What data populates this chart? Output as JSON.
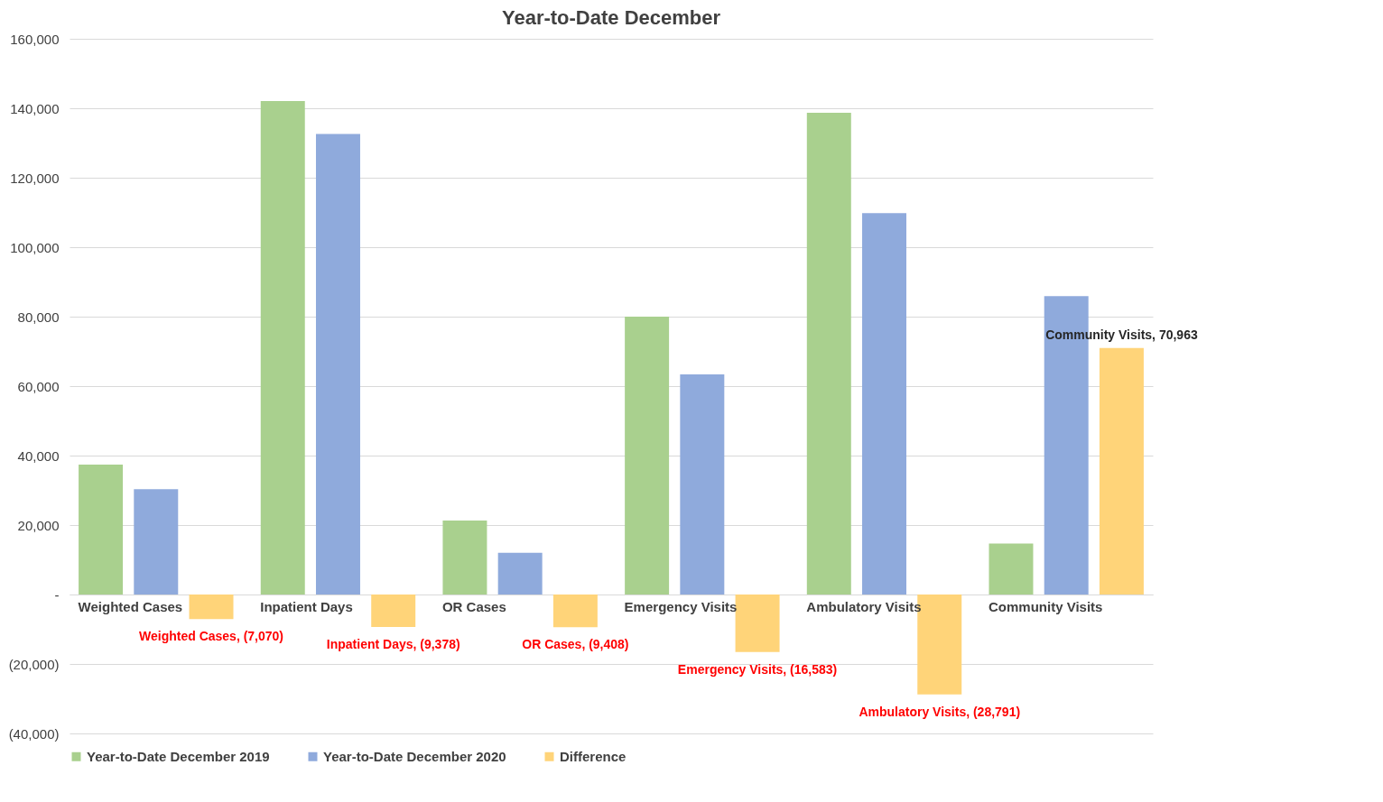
{
  "chart_data": {
    "type": "bar",
    "title": "Year-to-Date  December",
    "categories": [
      "Weighted Cases",
      "Inpatient Days",
      "OR Cases",
      "Emergency Visits",
      "Ambulatory Visits",
      "Community Visits"
    ],
    "series": [
      {
        "name": "Year-to-Date December 2019",
        "color": "#a9d08e",
        "values": [
          37400,
          142100,
          21300,
          80000,
          138700,
          14700
        ]
      },
      {
        "name": "Year-to-Date December 2020",
        "color": "#8faadc",
        "values": [
          30300,
          132600,
          12000,
          63400,
          109800,
          85900
        ]
      },
      {
        "name": "Difference",
        "color": "#ffd479",
        "values": [
          -7070,
          -9378,
          -9408,
          -16583,
          -28791,
          70963
        ],
        "value_labels": [
          "Weighted Cases, (7,070)",
          "Inpatient Days, (9,378)",
          "OR Cases, (9,408)",
          "Emergency Visits, (16,583)",
          "Ambulatory Visits, (28,791)",
          "Community Visits,  70,963"
        ]
      }
    ],
    "ylim": [
      -40000,
      160000
    ],
    "yticks": [
      {
        "value": -40000,
        "label": "(40,000)"
      },
      {
        "value": -20000,
        "label": "(20,000)"
      },
      {
        "value": 0,
        "label": "-"
      },
      {
        "value": 20000,
        "label": "20,000"
      },
      {
        "value": 40000,
        "label": "40,000"
      },
      {
        "value": 60000,
        "label": "60,000"
      },
      {
        "value": 80000,
        "label": "80,000"
      },
      {
        "value": 100000,
        "label": "100,000"
      },
      {
        "value": 120000,
        "label": "120,000"
      },
      {
        "value": 140000,
        "label": "140,000"
      },
      {
        "value": 160000,
        "label": "160,000"
      }
    ],
    "grid": "y",
    "legend": "bottom"
  }
}
